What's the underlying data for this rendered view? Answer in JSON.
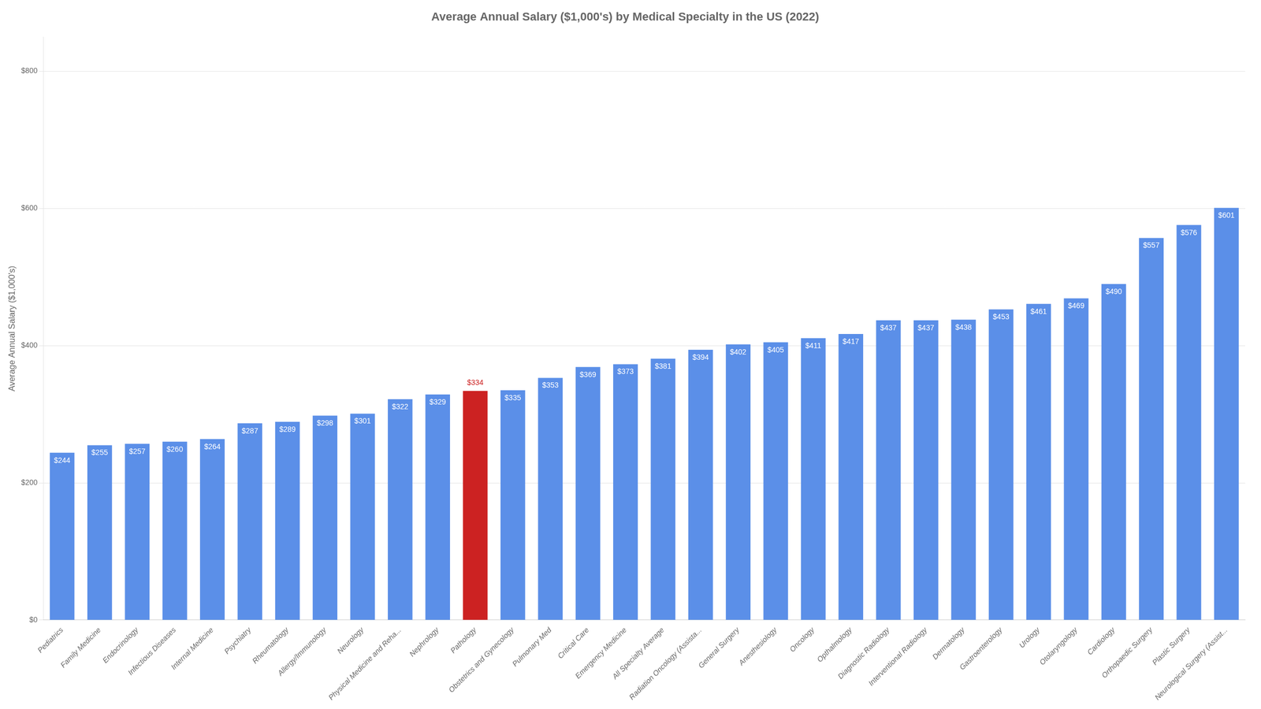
{
  "chart_data": {
    "type": "bar",
    "title": "Average Annual Salary ($1,000's) by Medical Specialty in the US (2022)",
    "ylabel": "Average Annual Salary ($1,000's)",
    "categories": [
      "Pediatrics",
      "Family Medicine",
      "Endocrinology",
      "Infectious Diseases",
      "Internal Medicine",
      "Psychiatry",
      "Rheumatology",
      "Allergy/Immunology",
      "Neurology",
      "Physical Medicine and Reha...",
      "Nephrology",
      "Pathology",
      "Obstetrics and Gynecology",
      "Pulmonary Med",
      "Critical Care",
      "Emergency Medicine",
      "All Specialty Average",
      "Radiation Oncology (Assista...",
      "General Surgery",
      "Anesthesiology",
      "Oncology",
      "Opthalmology",
      "Diagnostic Radiology",
      "Interventional Radiology",
      "Dermatology",
      "Gastroenterology",
      "Urology",
      "Otolaryngology",
      "Cardiology",
      "Orthopaedic Surgery",
      "Plastic Surgery",
      "Neurological Surgery (Assist..."
    ],
    "values": [
      244,
      255,
      257,
      260,
      264,
      287,
      289,
      298,
      301,
      322,
      329,
      334,
      335,
      353,
      369,
      373,
      381,
      394,
      402,
      405,
      411,
      417,
      437,
      437,
      438,
      453,
      461,
      469,
      490,
      557,
      576,
      601
    ],
    "value_labels": [
      "$244",
      "$255",
      "$257",
      "$260",
      "$264",
      "$287",
      "$289",
      "$298",
      "$301",
      "$322",
      "$329",
      "$334",
      "$335",
      "$353",
      "$369",
      "$373",
      "$381",
      "$394",
      "$402",
      "$405",
      "$411",
      "$417",
      "$437",
      "$437",
      "$438",
      "$453",
      "$461",
      "$469",
      "$490",
      "$557",
      "$576",
      "$601"
    ],
    "colors": [
      "#5b8fe8",
      "#5b8fe8",
      "#5b8fe8",
      "#5b8fe8",
      "#5b8fe8",
      "#5b8fe8",
      "#5b8fe8",
      "#5b8fe8",
      "#5b8fe8",
      "#5b8fe8",
      "#5b8fe8",
      "#cc2222",
      "#5b8fe8",
      "#5b8fe8",
      "#5b8fe8",
      "#5b8fe8",
      "#5b8fe8",
      "#5b8fe8",
      "#5b8fe8",
      "#5b8fe8",
      "#5b8fe8",
      "#5b8fe8",
      "#5b8fe8",
      "#5b8fe8",
      "#5b8fe8",
      "#5b8fe8",
      "#5b8fe8",
      "#5b8fe8",
      "#5b8fe8",
      "#5b8fe8",
      "#5b8fe8",
      "#5b8fe8"
    ],
    "ylim": [
      0,
      850
    ],
    "yticks": [
      {
        "value": 0,
        "label": "$0"
      },
      {
        "value": 200,
        "label": "$200"
      },
      {
        "value": 400,
        "label": "$400"
      },
      {
        "value": 600,
        "label": "$600"
      },
      {
        "value": 800,
        "label": "$800"
      }
    ],
    "grid": true,
    "data_labels": true
  }
}
